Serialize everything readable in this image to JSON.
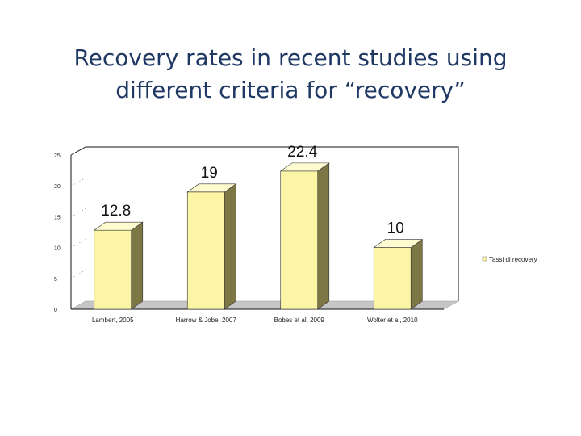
{
  "title_lines": [
    "Recovery rates in recent studies using",
    "different criteria for “recovery”"
  ],
  "chart_data": {
    "type": "bar",
    "title": "Recovery rates in recent studies using different criteria for “recovery”",
    "categories": [
      "Lambert, 2005",
      "Harrow & Jobe, 2007",
      "Bobes et al, 2009",
      "Wolter et al, 2010"
    ],
    "values": [
      12.8,
      19,
      22.4,
      10
    ],
    "value_labels": [
      "12.8",
      "19",
      "22.4",
      "10"
    ],
    "series": [
      {
        "name": "Tassi di recovery",
        "values": [
          12.8,
          19,
          22.4,
          10
        ]
      }
    ],
    "ylim": [
      0,
      25
    ],
    "yticks": [
      0,
      5,
      10,
      15,
      20,
      25
    ],
    "ytick_labels": [
      "0",
      "5",
      "10",
      "15",
      "20",
      "25"
    ],
    "xlabel": "",
    "ylabel": "",
    "legend": "right",
    "colors": {
      "bar_front": "#fdf5a6",
      "bar_side": "#7d7745",
      "bar_top": "#fffbd0",
      "floor": "#c6c6c6",
      "legend_swatch": "#fdf5a6"
    }
  }
}
